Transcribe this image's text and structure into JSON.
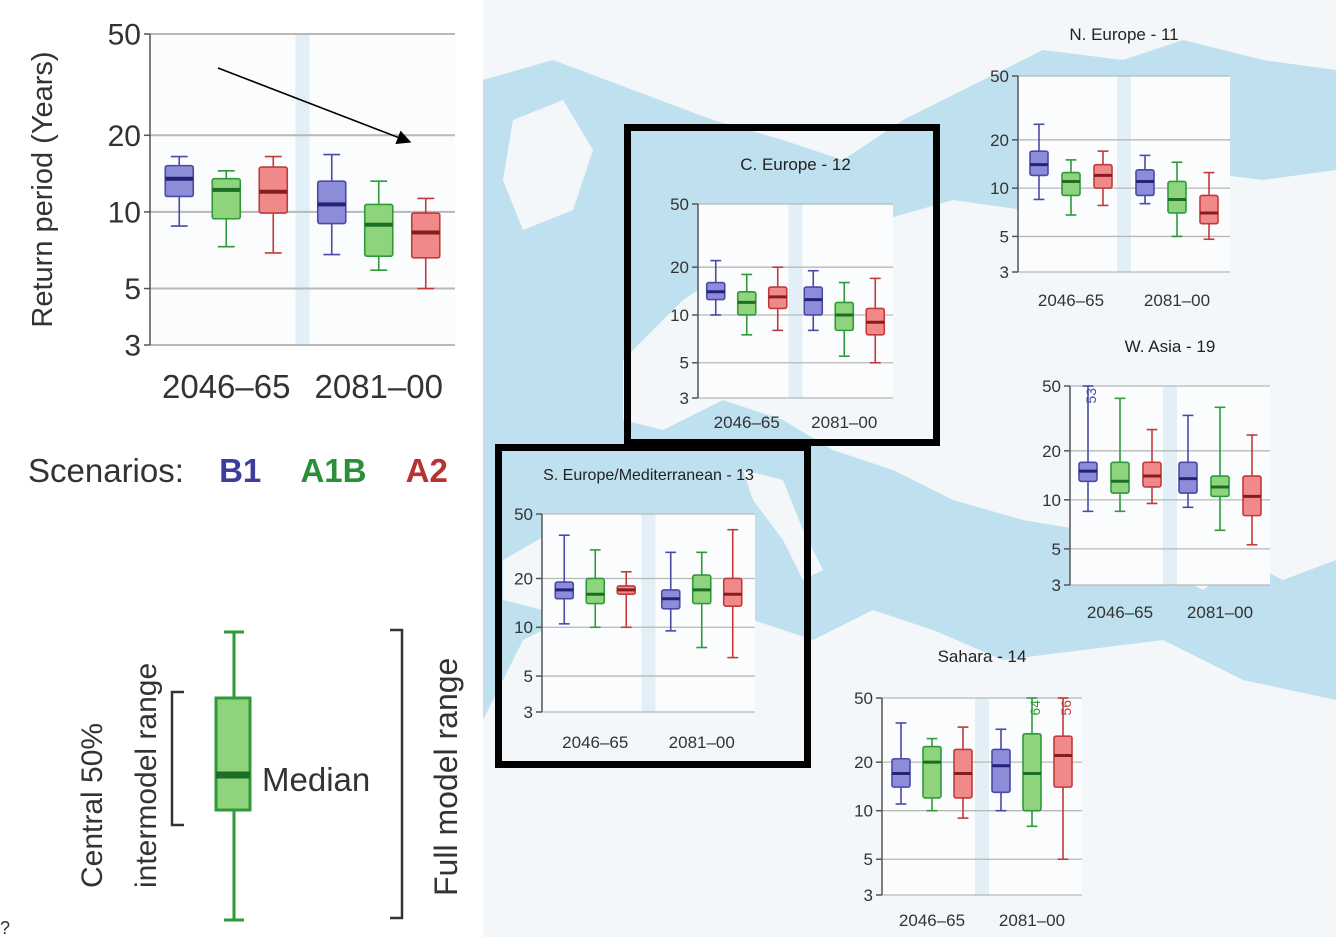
{
  "colors": {
    "B1": {
      "stroke": "#4a4aa8",
      "fill": "#8c8cd8",
      "median": "#23237a"
    },
    "A1B": {
      "stroke": "#2e9a3a",
      "fill": "#8fd47c",
      "median": "#1c6e26"
    },
    "A2": {
      "stroke": "#c23a3a",
      "fill": "#f08a8a",
      "median": "#8a1c1c"
    },
    "map_sea": "#bfe0ee",
    "map_land": "#f4f7f9"
  },
  "legend": {
    "scenarios_label": "Scenarios:",
    "scenarios": [
      {
        "name": "B1",
        "color": "#3d3d9c"
      },
      {
        "name": "A1B",
        "color": "#2a8f36"
      },
      {
        "name": "A2",
        "color": "#b83232"
      }
    ],
    "central_label_line1": "Central 50%",
    "central_label_line2": "intermodel range",
    "median_label": "Median",
    "full_range_label": "Full model range"
  },
  "stray_mark": "?",
  "chart_data": [
    {
      "id": "main",
      "type": "box",
      "title": "",
      "ylabel": "Return period (Years)",
      "yscale": "log",
      "ylim": [
        3,
        50
      ],
      "yticks": [
        3,
        5,
        10,
        20,
        50
      ],
      "categories": [
        "2046–65",
        "2081–00"
      ],
      "series": [
        {
          "name": "B1",
          "boxes": [
            {
              "min": 8.8,
              "q1": 11.5,
              "median": 13.5,
              "q3": 15.2,
              "max": 16.5
            },
            {
              "min": 6.8,
              "q1": 9.0,
              "median": 10.7,
              "q3": 13.2,
              "max": 16.8
            }
          ]
        },
        {
          "name": "A1B",
          "boxes": [
            {
              "min": 7.3,
              "q1": 9.4,
              "median": 12.2,
              "q3": 13.5,
              "max": 14.5
            },
            {
              "min": 5.9,
              "q1": 6.7,
              "median": 8.9,
              "q3": 10.7,
              "max": 13.2
            }
          ]
        },
        {
          "name": "A2",
          "boxes": [
            {
              "min": 6.9,
              "q1": 9.9,
              "median": 12.0,
              "q3": 15.0,
              "max": 16.5
            },
            {
              "min": 5.0,
              "q1": 6.6,
              "median": 8.3,
              "q3": 9.9,
              "max": 11.3
            }
          ]
        }
      ],
      "grid": true
    },
    {
      "id": "c-europe",
      "type": "box",
      "title": "C. Europe - 12",
      "yscale": "log",
      "ylim": [
        3,
        50
      ],
      "yticks": [
        3,
        5,
        10,
        20,
        50
      ],
      "categories": [
        "2046–65",
        "2081–00"
      ],
      "series": [
        {
          "name": "B1",
          "boxes": [
            {
              "min": 10,
              "q1": 12.5,
              "median": 14,
              "q3": 16,
              "max": 22
            },
            {
              "min": 8,
              "q1": 10,
              "median": 12.5,
              "q3": 15,
              "max": 19
            }
          ]
        },
        {
          "name": "A1B",
          "boxes": [
            {
              "min": 7.5,
              "q1": 10,
              "median": 12,
              "q3": 14,
              "max": 18
            },
            {
              "min": 5.5,
              "q1": 8,
              "median": 10,
              "q3": 12,
              "max": 16
            }
          ]
        },
        {
          "name": "A2",
          "boxes": [
            {
              "min": 8,
              "q1": 11,
              "median": 13,
              "q3": 15,
              "max": 20
            },
            {
              "min": 5,
              "q1": 7.5,
              "median": 9,
              "q3": 11,
              "max": 17
            }
          ]
        }
      ],
      "grid": true
    },
    {
      "id": "n-europe",
      "type": "box",
      "title": "N. Europe - 11",
      "yscale": "log",
      "ylim": [
        3,
        50
      ],
      "yticks": [
        3,
        5,
        10,
        20,
        50
      ],
      "categories": [
        "2046–65",
        "2081–00"
      ],
      "series": [
        {
          "name": "B1",
          "boxes": [
            {
              "min": 8.5,
              "q1": 12,
              "median": 14,
              "q3": 17,
              "max": 25
            },
            {
              "min": 8,
              "q1": 9,
              "median": 11,
              "q3": 13,
              "max": 16
            }
          ]
        },
        {
          "name": "A1B",
          "boxes": [
            {
              "min": 6.8,
              "q1": 9,
              "median": 11,
              "q3": 12.5,
              "max": 15
            },
            {
              "min": 5,
              "q1": 7,
              "median": 8.5,
              "q3": 11,
              "max": 14.5
            }
          ]
        },
        {
          "name": "A2",
          "boxes": [
            {
              "min": 7.8,
              "q1": 10,
              "median": 12,
              "q3": 14,
              "max": 17
            },
            {
              "min": 4.8,
              "q1": 6,
              "median": 7,
              "q3": 9,
              "max": 12.5
            }
          ]
        }
      ],
      "grid": true
    },
    {
      "id": "w-asia",
      "type": "box",
      "title": "W. Asia - 19",
      "yscale": "log",
      "ylim": [
        3,
        50
      ],
      "yticks": [
        3,
        5,
        10,
        20,
        50
      ],
      "categories": [
        "2046–65",
        "2081–00"
      ],
      "annotations": [
        {
          "series": "B1",
          "category": 0,
          "text": "53"
        }
      ],
      "series": [
        {
          "name": "B1",
          "boxes": [
            {
              "min": 8.5,
              "q1": 13,
              "median": 15,
              "q3": 17,
              "max": 50
            },
            {
              "min": 9,
              "q1": 11,
              "median": 13.5,
              "q3": 17,
              "max": 33
            }
          ]
        },
        {
          "name": "A1B",
          "boxes": [
            {
              "min": 8.5,
              "q1": 11,
              "median": 13,
              "q3": 17,
              "max": 42
            },
            {
              "min": 6.5,
              "q1": 10.5,
              "median": 12,
              "q3": 14,
              "max": 37
            }
          ]
        },
        {
          "name": "A2",
          "boxes": [
            {
              "min": 9.5,
              "q1": 12,
              "median": 14,
              "q3": 17,
              "max": 27
            },
            {
              "min": 5.3,
              "q1": 8,
              "median": 10.5,
              "q3": 14,
              "max": 25
            }
          ]
        }
      ],
      "grid": true
    },
    {
      "id": "s-europe",
      "type": "box",
      "title": "S. Europe/Mediterranean - 13",
      "yscale": "log",
      "ylim": [
        3,
        50
      ],
      "yticks": [
        3,
        5,
        10,
        20,
        50
      ],
      "categories": [
        "2046–65",
        "2081–00"
      ],
      "series": [
        {
          "name": "B1",
          "boxes": [
            {
              "min": 10.5,
              "q1": 15,
              "median": 17,
              "q3": 19,
              "max": 37
            },
            {
              "min": 9.5,
              "q1": 13,
              "median": 15,
              "q3": 17,
              "max": 29
            }
          ]
        },
        {
          "name": "A1B",
          "boxes": [
            {
              "min": 10,
              "q1": 14,
              "median": 16,
              "q3": 20,
              "max": 30
            },
            {
              "min": 7.5,
              "q1": 14,
              "median": 17,
              "q3": 21,
              "max": 29
            }
          ]
        },
        {
          "name": "A2",
          "boxes": [
            {
              "min": 10,
              "q1": 16,
              "median": 17,
              "q3": 18,
              "max": 22
            },
            {
              "min": 6.5,
              "q1": 13.5,
              "median": 16,
              "q3": 20,
              "max": 40
            }
          ]
        }
      ],
      "grid": true
    },
    {
      "id": "sahara",
      "type": "box",
      "title": "Sahara - 14",
      "yscale": "log",
      "ylim": [
        3,
        50
      ],
      "yticks": [
        3,
        5,
        10,
        20,
        50
      ],
      "categories": [
        "2046–65",
        "2081–00"
      ],
      "annotations": [
        {
          "series": "A1B",
          "category": 1,
          "text": "64"
        },
        {
          "series": "A2",
          "category": 1,
          "text": "56"
        }
      ],
      "series": [
        {
          "name": "B1",
          "boxes": [
            {
              "min": 11,
              "q1": 14,
              "median": 17,
              "q3": 21,
              "max": 35
            },
            {
              "min": 10,
              "q1": 13,
              "median": 19,
              "q3": 24,
              "max": 32
            }
          ]
        },
        {
          "name": "A1B",
          "boxes": [
            {
              "min": 10,
              "q1": 12,
              "median": 20,
              "q3": 25,
              "max": 28
            },
            {
              "min": 8,
              "q1": 10,
              "median": 17,
              "q3": 30,
              "max": 50
            }
          ]
        },
        {
          "name": "A2",
          "boxes": [
            {
              "min": 9,
              "q1": 12,
              "median": 17,
              "q3": 24,
              "max": 33
            },
            {
              "min": 5,
              "q1": 14,
              "median": 22,
              "q3": 29,
              "max": 50
            }
          ]
        }
      ],
      "grid": true
    }
  ]
}
